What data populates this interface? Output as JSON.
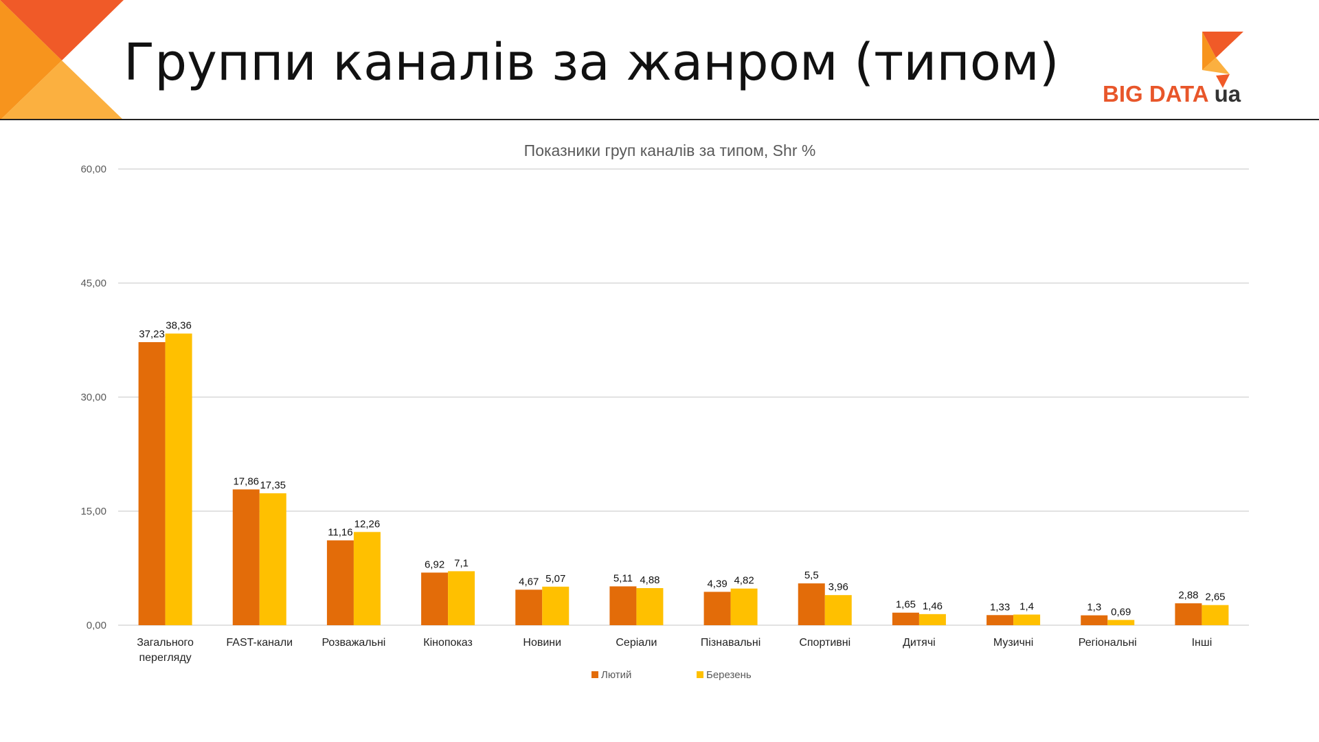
{
  "page": {
    "title": "Группи каналів за жанром (типом)"
  },
  "logo": {
    "text": "BIG DATA",
    "suffix": "ua"
  },
  "colors": {
    "series1": "#e36c09",
    "series2": "#ffc000",
    "grid": "#d9d9d9",
    "accent_dark": "#f05a28",
    "accent_light": "#fbb040"
  },
  "chart_data": {
    "type": "bar",
    "title": "Показники груп каналів за типом, Shr %",
    "xlabel": "",
    "ylabel": "",
    "ylim": [
      0,
      60
    ],
    "yticks": [
      "0,00",
      "15,00",
      "30,00",
      "45,00",
      "60,00"
    ],
    "ytick_values": [
      0,
      15,
      30,
      45,
      60
    ],
    "grid": true,
    "legend_position": "bottom",
    "categories": [
      [
        "Загального",
        "перегляду"
      ],
      [
        "FAST-канали"
      ],
      [
        "Розважальні"
      ],
      [
        "Кінопоказ"
      ],
      [
        "Новини"
      ],
      [
        "Серіали"
      ],
      [
        "Пізнавальні"
      ],
      [
        "Спортивні"
      ],
      [
        "Дитячі"
      ],
      [
        "Музичні"
      ],
      [
        "Регіональні"
      ],
      [
        "Інші"
      ]
    ],
    "series": [
      {
        "name": "Лютий",
        "values": [
          37.23,
          17.86,
          11.16,
          6.92,
          4.67,
          5.11,
          4.39,
          5.5,
          1.65,
          1.33,
          1.3,
          2.88
        ],
        "labels": [
          "37,23",
          "17,86",
          "11,16",
          "6,92",
          "4,67",
          "5,11",
          "4,39",
          "5,5",
          "1,65",
          "1,33",
          "1,3",
          "2,88"
        ]
      },
      {
        "name": "Березень",
        "values": [
          38.36,
          17.35,
          12.26,
          7.1,
          5.07,
          4.88,
          4.82,
          3.96,
          1.46,
          1.4,
          0.69,
          2.65
        ],
        "labels": [
          "38,36",
          "17,35",
          "12,26",
          "7,1",
          "5,07",
          "4,88",
          "4,82",
          "3,96",
          "1,46",
          "1,4",
          "0,69",
          "2,65"
        ]
      }
    ]
  }
}
